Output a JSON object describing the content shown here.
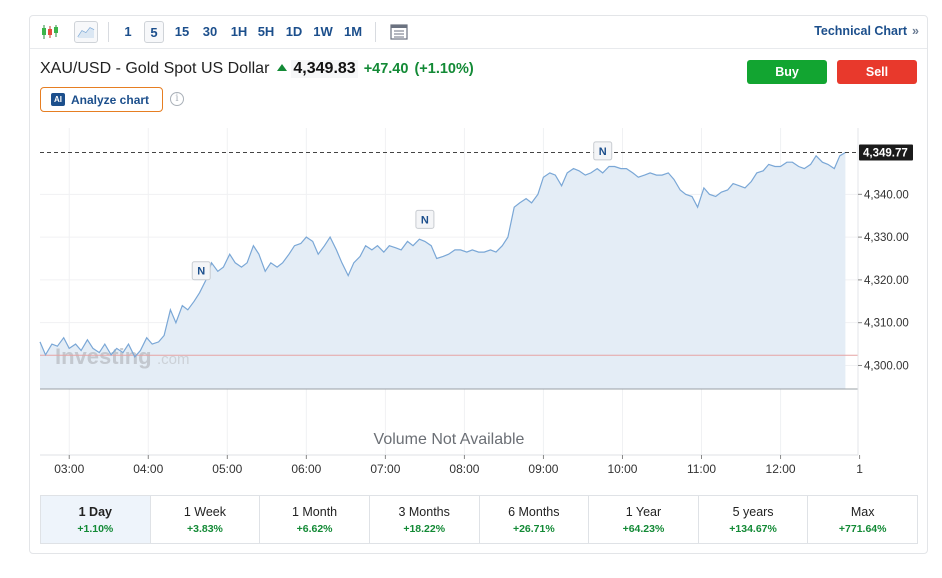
{
  "toolbar": {
    "timeframes": [
      "1",
      "5",
      "15",
      "30",
      "1H",
      "5H",
      "1D",
      "1W",
      "1M"
    ],
    "active_timeframe": "5",
    "technical_chart_label": "Technical Chart",
    "technical_chart_chevron": "»",
    "icons": [
      "candlestick-icon",
      "area-chart-icon",
      "table-view-icon"
    ]
  },
  "instrument": {
    "name": "XAU/USD - Gold Spot US Dollar",
    "price": "4,349.83",
    "change": "+47.40",
    "change_pct": "(+1.10%)"
  },
  "actions": {
    "buy_label": "Buy",
    "sell_label": "Sell"
  },
  "analyze": {
    "badge": "AI",
    "label": "Analyze chart",
    "info_glyph": "i"
  },
  "watermark": {
    "brand": "Investing",
    "suffix": ".com"
  },
  "volume_note": "Volume Not Available",
  "chart_data": {
    "type": "area",
    "x_ticks": [
      "03:00",
      "04:00",
      "05:00",
      "06:00",
      "07:00",
      "08:00",
      "09:00",
      "10:00",
      "11:00",
      "12:00",
      "1"
    ],
    "x_tick_hours": [
      3,
      4,
      5,
      6,
      7,
      8,
      9,
      10,
      11,
      12,
      13
    ],
    "y_ticks": [
      "4,300.00",
      "4,310.00",
      "4,320.00",
      "4,330.00",
      "4,340.00"
    ],
    "y_tick_values": [
      4300,
      4310,
      4320,
      4330,
      4340
    ],
    "ylim": [
      4294.5,
      4355.5
    ],
    "xlim": [
      2.63,
      12.98
    ],
    "last_price_label": "4,349.77",
    "last_price": 4349.77,
    "previous_close": 4302.4,
    "news_markers": [
      {
        "label": "N",
        "hour": 4.67
      },
      {
        "label": "N",
        "hour": 7.5
      },
      {
        "label": "N",
        "hour": 9.75
      }
    ],
    "series": [
      {
        "hours": [
          2.63,
          2.7,
          2.78,
          2.85,
          2.93,
          3.0,
          3.08,
          3.15,
          3.23,
          3.3,
          3.38,
          3.45,
          3.53,
          3.6,
          3.68,
          3.75,
          3.83,
          3.9,
          3.98,
          4.05,
          4.13,
          4.2,
          4.28,
          4.35,
          4.43,
          4.5,
          4.58,
          4.65,
          4.73,
          4.8,
          4.88,
          4.95,
          5.03,
          5.1,
          5.18,
          5.25,
          5.33,
          5.4,
          5.48,
          5.55,
          5.63,
          5.7,
          5.78,
          5.85,
          5.93,
          6.0,
          6.08,
          6.15,
          6.23,
          6.3,
          6.38,
          6.45,
          6.53,
          6.6,
          6.68,
          6.75,
          6.83,
          6.9,
          6.98,
          7.05,
          7.13,
          7.2,
          7.28,
          7.35,
          7.43,
          7.5,
          7.58,
          7.65,
          7.73,
          7.8,
          7.88,
          7.95,
          8.03,
          8.1,
          8.18,
          8.25,
          8.33,
          8.4,
          8.48,
          8.55,
          8.63,
          8.7,
          8.78,
          8.85,
          8.93,
          9.0,
          9.08,
          9.15,
          9.23,
          9.3,
          9.38,
          9.45,
          9.53,
          9.6,
          9.68,
          9.75,
          9.83,
          9.9,
          9.98,
          10.05,
          10.13,
          10.2,
          10.28,
          10.35,
          10.43,
          10.5,
          10.58,
          10.65,
          10.73,
          10.8,
          10.88,
          10.95,
          11.03,
          11.1,
          11.18,
          11.25,
          11.33,
          11.4,
          11.48,
          11.55,
          11.63,
          11.7,
          11.78,
          11.85,
          11.93,
          12.0,
          12.08,
          12.15,
          12.23,
          12.3,
          12.38,
          12.45,
          12.53,
          12.6,
          12.68,
          12.75,
          12.82
        ],
        "values": [
          4305.5,
          4302.5,
          4305.0,
          4304.5,
          4306.5,
          4304.0,
          4305.0,
          4303.5,
          4306.0,
          4304.0,
          4303.0,
          4305.0,
          4302.5,
          4304.0,
          4303.0,
          4305.0,
          4302.0,
          4303.5,
          4306.5,
          4305.0,
          4305.5,
          4307.0,
          4313.0,
          4310.0,
          4314.0,
          4313.0,
          4315.0,
          4317.0,
          4320.0,
          4324.0,
          4322.0,
          4323.0,
          4326.0,
          4324.0,
          4323.0,
          4324.0,
          4328.0,
          4326.0,
          4322.0,
          4324.0,
          4323.0,
          4324.0,
          4326.0,
          4328.0,
          4328.5,
          4330.0,
          4329.0,
          4326.0,
          4328.0,
          4330.0,
          4327.0,
          4324.0,
          4321.0,
          4324.0,
          4325.5,
          4328.0,
          4327.0,
          4328.0,
          4326.5,
          4328.0,
          4327.5,
          4327.0,
          4329.0,
          4328.0,
          4329.5,
          4329.0,
          4328.0,
          4325.0,
          4325.5,
          4326.0,
          4327.0,
          4327.0,
          4326.5,
          4327.0,
          4326.5,
          4326.5,
          4327.0,
          4326.5,
          4328.0,
          4330.0,
          4337.0,
          4338.0,
          4339.0,
          4338.0,
          4340.0,
          4344.0,
          4345.0,
          4344.5,
          4342.0,
          4345.0,
          4346.0,
          4345.5,
          4344.5,
          4345.0,
          4346.0,
          4345.0,
          4346.5,
          4346.5,
          4346.0,
          4346.0,
          4345.0,
          4344.0,
          4344.5,
          4345.0,
          4344.5,
          4344.5,
          4345.0,
          4343.5,
          4341.0,
          4340.0,
          4339.5,
          4337.0,
          4341.5,
          4340.0,
          4339.5,
          4340.5,
          4341.0,
          4342.5,
          4342.0,
          4341.5,
          4343.0,
          4345.0,
          4345.5,
          4347.0,
          4346.5,
          4346.5,
          4347.5,
          4347.5,
          4346.5,
          4346.0,
          4347.0,
          4349.0,
          4347.5,
          4347.0,
          4346.0,
          4349.0,
          4349.77
        ]
      }
    ]
  },
  "periods": [
    {
      "label": "1 Day",
      "change": "+1.10%"
    },
    {
      "label": "1 Week",
      "change": "+3.83%"
    },
    {
      "label": "1 Month",
      "change": "+6.62%"
    },
    {
      "label": "3 Months",
      "change": "+18.22%"
    },
    {
      "label": "6 Months",
      "change": "+26.71%"
    },
    {
      "label": "1 Year",
      "change": "+64.23%"
    },
    {
      "label": "5 years",
      "change": "+134.67%"
    },
    {
      "label": "Max",
      "change": "+771.64%"
    }
  ],
  "colors": {
    "line": "#7aa7d6",
    "fill": "#e4edf6",
    "up": "#138a36",
    "buy": "#12a531",
    "sell": "#e8392c",
    "link": "#1c4f8c",
    "prev_close_line": "#e6a3a3"
  }
}
